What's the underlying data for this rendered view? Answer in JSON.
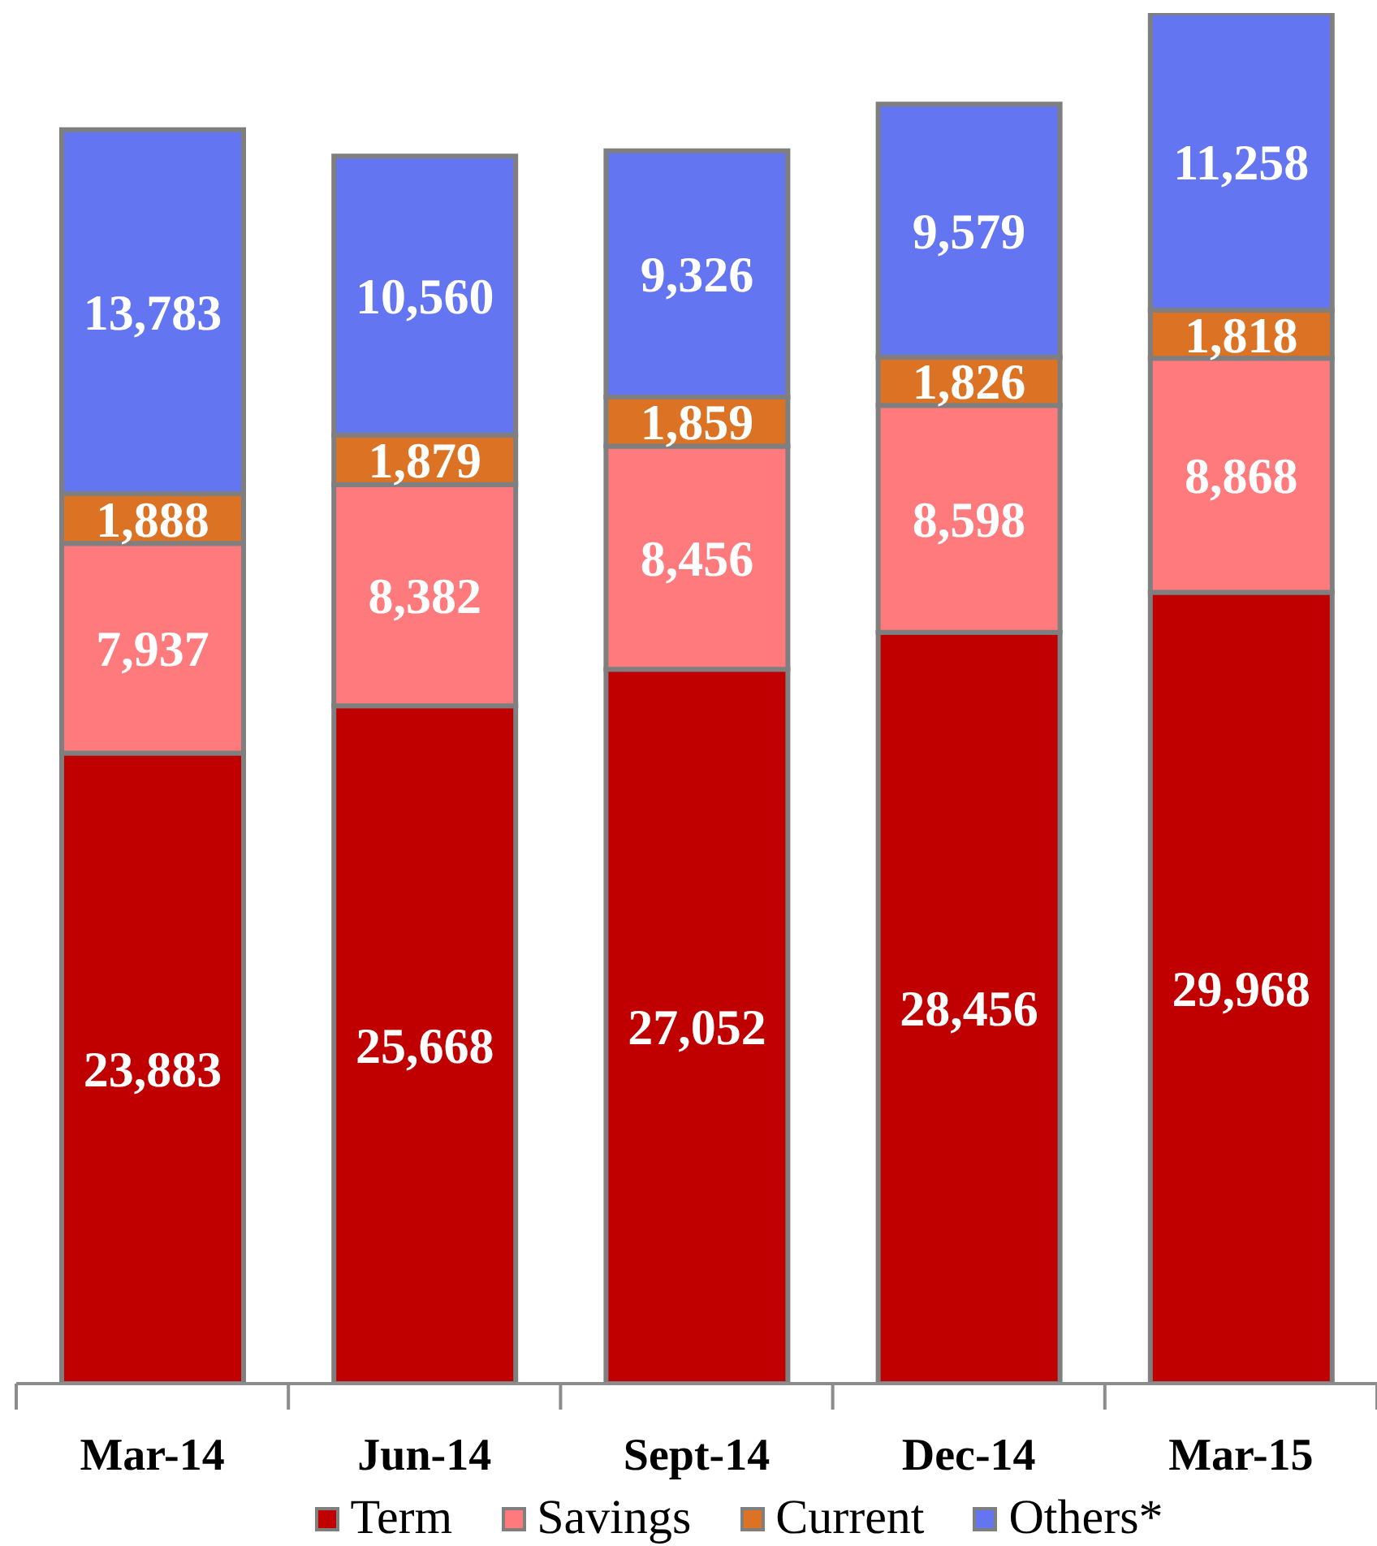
{
  "chart_data": {
    "type": "bar",
    "stacked": true,
    "legend": "bottom",
    "categories": [
      "Mar-14",
      "Jun-14",
      "Sept-14",
      "Dec-14",
      "Mar-15"
    ],
    "series": [
      {
        "name": "Term",
        "color": "#c00000",
        "values": [
          23883,
          25668,
          27052,
          28456,
          29968
        ],
        "value_labels": [
          "23,883",
          "25,668",
          "27,052",
          "28,456",
          "29,968"
        ]
      },
      {
        "name": "Savings",
        "color": "#ff7a7c",
        "values": [
          7937,
          8382,
          8456,
          8598,
          8868
        ],
        "value_labels": [
          "7,937",
          "8,382",
          "8,456",
          "8,598",
          "8,868"
        ]
      },
      {
        "name": "Current",
        "color": "#dc7324",
        "values": [
          1888,
          1879,
          1859,
          1826,
          1818
        ],
        "value_labels": [
          "1,888",
          "1,879",
          "1,859",
          "1,826",
          "1,818"
        ]
      },
      {
        "name": "Others*",
        "color": "#6375f0",
        "values": [
          13783,
          10560,
          9326,
          9579,
          11258
        ],
        "value_labels": [
          "13,783",
          "10,560",
          "9,326",
          "9,579",
          "11,258"
        ]
      }
    ]
  }
}
